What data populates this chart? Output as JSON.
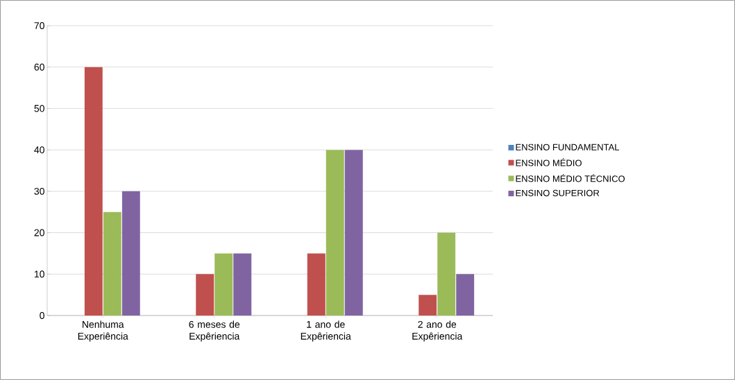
{
  "chart_data": {
    "type": "bar",
    "categories": [
      "Nenhuma Experiência",
      "6 meses de Expêriencia",
      "1 ano de Expêriencia",
      "2 ano de Expêriencia"
    ],
    "series": [
      {
        "name": "ENSINO FUNDAMENTAL",
        "color": "#4f81bd",
        "values": [
          0,
          0,
          0,
          0
        ]
      },
      {
        "name": "ENSINO MÉDIO",
        "color": "#c0504d",
        "values": [
          60,
          10,
          15,
          5
        ]
      },
      {
        "name": "ENSINO MÉDIO TÉCNICO",
        "color": "#9bbb59",
        "values": [
          25,
          15,
          40,
          20
        ]
      },
      {
        "name": "ENSINO SUPERIOR",
        "color": "#8064a2",
        "values": [
          30,
          15,
          40,
          10
        ]
      }
    ],
    "ylim": [
      0,
      70
    ],
    "yticks": [
      0,
      10,
      20,
      30,
      40,
      50,
      60,
      70
    ],
    "grid": "y",
    "legend": "right"
  }
}
